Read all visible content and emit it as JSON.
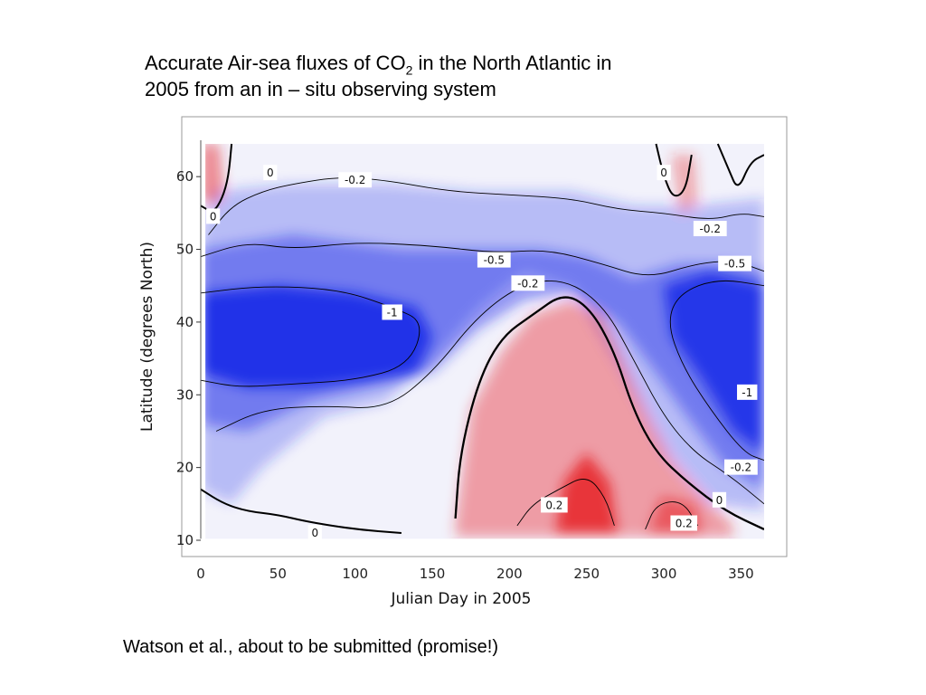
{
  "slide": {
    "title_line1_pre": "Accurate Air-sea fluxes of CO",
    "title_line1_sub": "2",
    "title_line1_post": " in the North Atlantic in",
    "title_line2": "2005 from an in – situ observing system",
    "footnote": "Watson et al., about to be submitted (promise!)"
  },
  "colors": {
    "negative": "#1f2fe8",
    "neutral": "#f2f2fb",
    "positive": "#e8252a",
    "contour": "#000000"
  },
  "chart_data": {
    "type": "heatmap",
    "title": "",
    "xlabel": "Julian Day in 2005",
    "ylabel": "Latitude (degrees North)",
    "xlim": [
      0,
      365
    ],
    "ylim": [
      10,
      65
    ],
    "xticks": [
      0,
      50,
      100,
      150,
      200,
      250,
      300,
      350
    ],
    "yticks": [
      10,
      20,
      30,
      40,
      50,
      60
    ],
    "color_scale": "diverging blue (negative) - white (zero) - red (positive)",
    "contour_levels": [
      -1,
      -0.5,
      -0.2,
      0,
      0.2
    ],
    "contour_labels": [
      {
        "text": "0",
        "x": 45,
        "y": 60.5
      },
      {
        "text": "-0.2",
        "x": 100,
        "y": 59.5
      },
      {
        "text": "0",
        "x": 8,
        "y": 54.5
      },
      {
        "text": "-0.5",
        "x": 190,
        "y": 48.5
      },
      {
        "text": "-0.2",
        "x": 212,
        "y": 45.3
      },
      {
        "text": "-1",
        "x": 124,
        "y": 41.3
      },
      {
        "text": "0",
        "x": 300,
        "y": 60.5
      },
      {
        "text": "-0.2",
        "x": 330,
        "y": 52.8
      },
      {
        "text": "-0.5",
        "x": 346,
        "y": 48
      },
      {
        "text": "-1",
        "x": 354,
        "y": 30.3
      },
      {
        "text": "-0.2",
        "x": 350,
        "y": 20
      },
      {
        "text": "0",
        "x": 336,
        "y": 15.5
      },
      {
        "text": "0.2",
        "x": 229,
        "y": 14.8
      },
      {
        "text": "0.2",
        "x": 313,
        "y": 12.3
      },
      {
        "text": "0",
        "x": 74,
        "y": 11
      }
    ]
  }
}
